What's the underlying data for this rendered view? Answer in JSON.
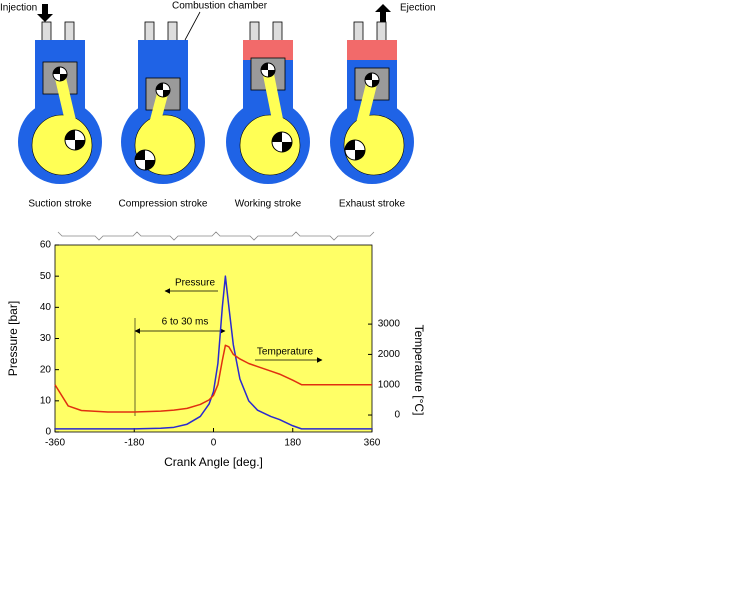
{
  "diagram": {
    "injection": "Injection",
    "ejection": "Ejection",
    "combustion_chamber": "Combustion chamber",
    "strokes": [
      "Suction stroke",
      "Compression stroke",
      "Working stroke",
      "Exhaust stroke"
    ]
  },
  "chart_data": {
    "type": "line",
    "x_label": "Crank Angle [deg.]",
    "y_label": "Pressure [bar]",
    "y2_label": "Temperature [°C]",
    "annotations": [
      "Pressure",
      "6 to 30 ms",
      "Temperature"
    ],
    "x": [
      -360,
      -330,
      -300,
      -240,
      -180,
      -120,
      -90,
      -60,
      -30,
      -10,
      0,
      10,
      20,
      27,
      35,
      45,
      60,
      80,
      100,
      130,
      150,
      180,
      200,
      240,
      300,
      360
    ],
    "series": [
      {
        "name": "Pressure",
        "color": "#2a2ad0",
        "values": [
          1,
          1,
          1,
          1,
          1,
          1.2,
          1.5,
          2.5,
          5,
          9,
          13,
          22,
          40,
          50,
          40,
          28,
          17,
          10,
          7,
          5,
          4,
          2,
          1,
          1,
          1,
          1
        ]
      },
      {
        "name": "Temperature",
        "color": "#e03010",
        "axis": "y2",
        "values": [
          1000,
          300,
          150,
          100,
          100,
          130,
          160,
          220,
          350,
          500,
          650,
          1000,
          1800,
          2300,
          2250,
          2000,
          1850,
          1700,
          1600,
          1450,
          1350,
          1150,
          1000,
          1000,
          1000,
          1000
        ]
      }
    ],
    "xlim": [
      -360,
      360
    ],
    "xticks": [
      -360,
      -180,
      0,
      180,
      360
    ],
    "ylim": [
      0,
      60
    ],
    "yticks": [
      0,
      10,
      20,
      30,
      40,
      50,
      60
    ],
    "y2lim": [
      -560,
      5610
    ],
    "y2ticks": [
      0,
      1000,
      2000,
      3000
    ],
    "background": "#ffff66"
  }
}
